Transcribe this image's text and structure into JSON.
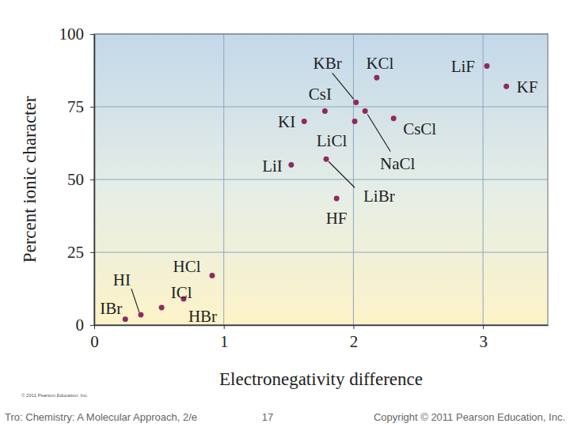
{
  "chart_data": {
    "type": "scatter",
    "x_label": "Electronegativity difference",
    "y_label": "Percent ionic character",
    "labels": [
      "IBr",
      "HI",
      "ICl",
      "HBr",
      "HCl",
      "LiI",
      "KI",
      "CsI",
      "LiBr",
      "HF",
      "LiCl",
      "KBr",
      "NaCl",
      "KCl",
      "CsCl",
      "LiF",
      "KF"
    ],
    "x": [
      0.24,
      0.36,
      0.52,
      0.69,
      0.91,
      1.52,
      1.62,
      1.78,
      1.79,
      1.87,
      2.01,
      2.02,
      2.09,
      2.18,
      2.31,
      3.03,
      3.18
    ],
    "values": [
      2,
      3.5,
      6,
      9,
      17,
      55,
      70,
      73.5,
      57,
      43.5,
      70,
      76.5,
      73.5,
      85,
      71,
      89,
      82
    ],
    "xlim": [
      0,
      3.5
    ],
    "xticks": [
      0,
      1,
      2,
      3
    ],
    "ylim": [
      0,
      100
    ],
    "yticks": [
      0,
      25,
      50,
      75,
      100
    ],
    "grid": true,
    "color": "#8e2a5f",
    "marker": "circle"
  },
  "credit": "© 2011 Pearson Education, Inc.",
  "footer": {
    "left": "Tro: Chemistry: A Molecular Approach, 2/e",
    "page": "17",
    "right": "Copyright © 2011 Pearson Education, Inc."
  }
}
